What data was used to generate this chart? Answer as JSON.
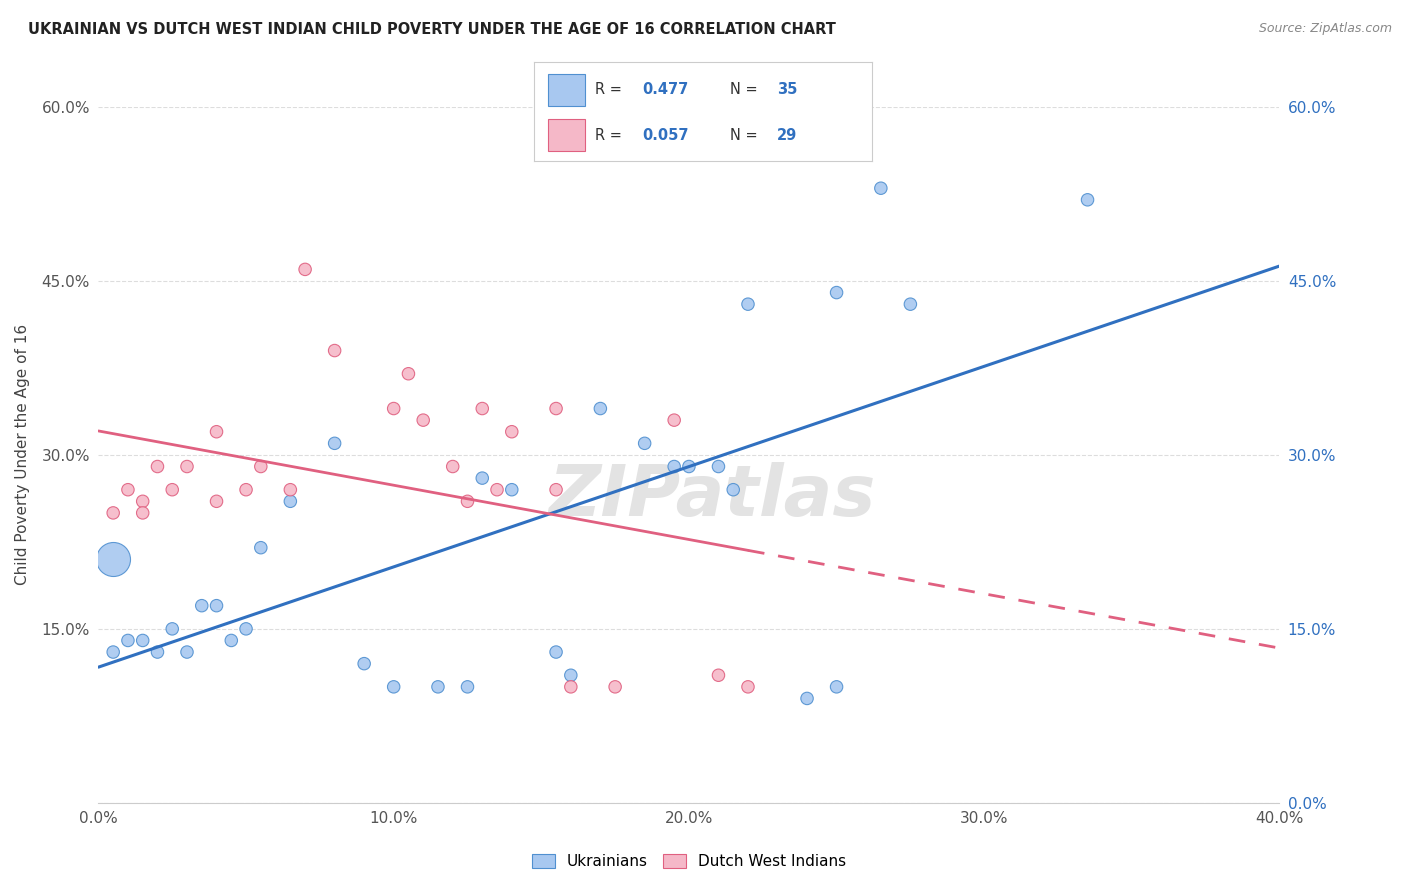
{
  "title": "UKRAINIAN VS DUTCH WEST INDIAN CHILD POVERTY UNDER THE AGE OF 16 CORRELATION CHART",
  "source": "Source: ZipAtlas.com",
  "ylabel": "Child Poverty Under the Age of 16",
  "xlim": [
    0,
    0.4
  ],
  "ylim": [
    0,
    0.6
  ],
  "xticks": [
    0.0,
    0.1,
    0.2,
    0.3,
    0.4
  ],
  "yticks": [
    0.0,
    0.15,
    0.3,
    0.45,
    0.6
  ],
  "blue_color": "#A8C8F0",
  "pink_color": "#F5B8C8",
  "blue_edge_color": "#5090D0",
  "pink_edge_color": "#E06080",
  "blue_line_color": "#3070C0",
  "pink_line_color": "#E06080",
  "grid_color": "#DDDDDD",
  "R_blue": 0.477,
  "N_blue": 35,
  "R_pink": 0.057,
  "N_pink": 29,
  "ukrainian_x": [
    0.005,
    0.01,
    0.015,
    0.02,
    0.025,
    0.03,
    0.035,
    0.04,
    0.045,
    0.05,
    0.055,
    0.065,
    0.08,
    0.09,
    0.1,
    0.115,
    0.125,
    0.13,
    0.14,
    0.155,
    0.16,
    0.17,
    0.185,
    0.195,
    0.2,
    0.21,
    0.215,
    0.22,
    0.24,
    0.25,
    0.25,
    0.265,
    0.275,
    0.335,
    0.005
  ],
  "ukrainian_y": [
    0.13,
    0.14,
    0.14,
    0.13,
    0.15,
    0.13,
    0.17,
    0.17,
    0.14,
    0.15,
    0.22,
    0.26,
    0.31,
    0.12,
    0.1,
    0.1,
    0.1,
    0.28,
    0.27,
    0.13,
    0.11,
    0.34,
    0.31,
    0.29,
    0.29,
    0.29,
    0.27,
    0.43,
    0.09,
    0.1,
    0.44,
    0.53,
    0.43,
    0.52,
    0.21
  ],
  "ukrainian_sizes_raw": [
    1,
    1,
    1,
    1,
    1,
    1,
    1,
    1,
    1,
    1,
    1,
    1,
    1,
    1,
    1,
    1,
    1,
    1,
    1,
    1,
    1,
    1,
    1,
    1,
    1,
    1,
    1,
    1,
    1,
    1,
    1,
    1,
    1,
    1,
    8
  ],
  "dutch_x": [
    0.005,
    0.01,
    0.015,
    0.015,
    0.02,
    0.025,
    0.03,
    0.04,
    0.04,
    0.05,
    0.055,
    0.065,
    0.07,
    0.08,
    0.1,
    0.105,
    0.11,
    0.12,
    0.125,
    0.13,
    0.135,
    0.14,
    0.155,
    0.155,
    0.16,
    0.175,
    0.195,
    0.21,
    0.22
  ],
  "dutch_y": [
    0.25,
    0.27,
    0.26,
    0.25,
    0.29,
    0.27,
    0.29,
    0.26,
    0.32,
    0.27,
    0.29,
    0.27,
    0.46,
    0.39,
    0.34,
    0.37,
    0.33,
    0.29,
    0.26,
    0.34,
    0.27,
    0.32,
    0.34,
    0.27,
    0.1,
    0.1,
    0.33,
    0.11,
    0.1
  ],
  "dutch_sizes_raw": [
    1,
    1,
    1,
    1,
    1,
    1,
    1,
    1,
    1,
    1,
    1,
    1,
    1,
    1,
    1,
    1,
    1,
    1,
    1,
    1,
    1,
    1,
    1,
    1,
    1,
    1,
    1,
    1,
    1
  ],
  "watermark": "ZIPatlas",
  "legend_label_blue": "Ukrainians",
  "legend_label_pink": "Dutch West Indians"
}
